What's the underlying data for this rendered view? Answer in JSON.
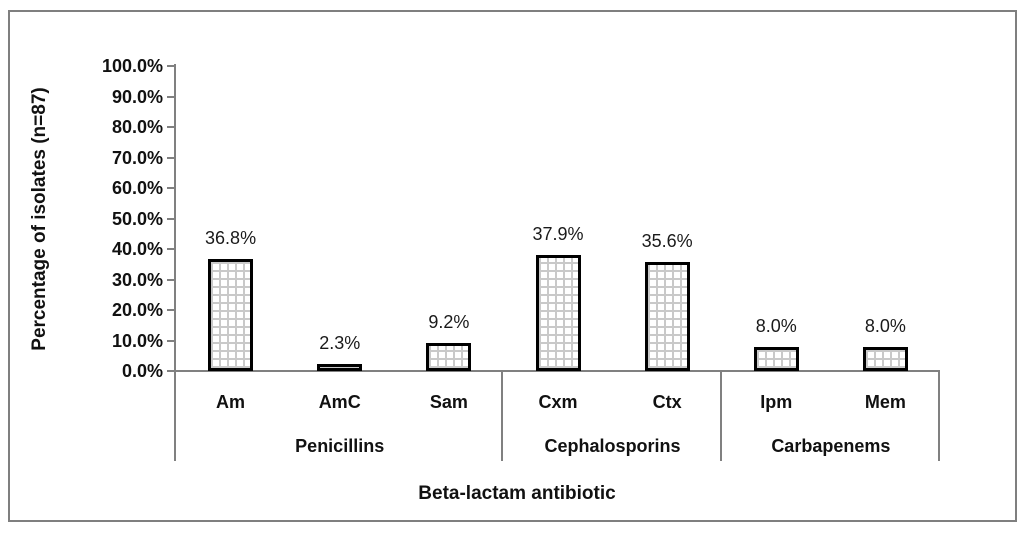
{
  "figure": {
    "background": "#ffffff",
    "frame_border_color": "#7f7f7f"
  },
  "chart_data": {
    "type": "bar",
    "title": "",
    "xlabel": "Beta-lactam antibiotic",
    "ylabel": "Percentage of isolates (n=87)",
    "ylim": [
      0,
      100
    ],
    "ytick_step": 10,
    "ytick_labels": [
      "0.0%",
      "10.0%",
      "20.0%",
      "30.0%",
      "40.0%",
      "50.0%",
      "60.0%",
      "70.0%",
      "80.0%",
      "90.0%",
      "100.0%"
    ],
    "grid": false,
    "legend": "none",
    "categories": [
      "Am",
      "AmC",
      "Sam",
      "Cxm",
      "Ctx",
      "Ipm",
      "Mem"
    ],
    "values": [
      36.8,
      2.3,
      9.2,
      37.9,
      35.6,
      8.0,
      8.0
    ],
    "data_labels": [
      "36.8%",
      "2.3%",
      "9.2%",
      "37.9%",
      "35.6%",
      "8.0%",
      "8.0%"
    ],
    "groups": [
      {
        "label": "Penicillins",
        "start": 0,
        "end": 2
      },
      {
        "label": "Cephalosporins",
        "start": 3,
        "end": 4
      },
      {
        "label": "Carbapenems",
        "start": 5,
        "end": 6
      }
    ],
    "bar_style": {
      "fill": "#ffffff",
      "pattern": "small-grid",
      "pattern_color": "#c9c9c9",
      "border_color": "#000000"
    },
    "axis_color": "#808080",
    "text_color": "#111111"
  }
}
